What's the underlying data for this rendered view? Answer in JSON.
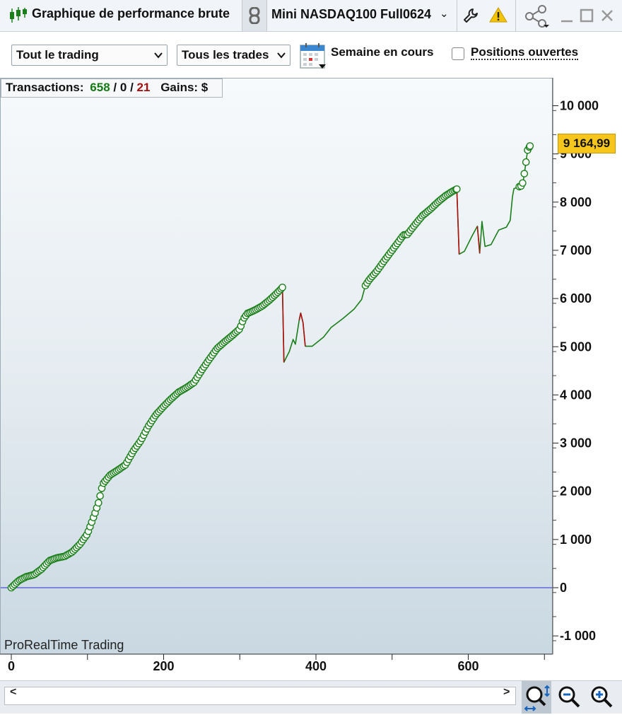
{
  "window": {
    "title": "Graphique de performance brute",
    "instrument": "Mini NASDAQ100 Full0624",
    "icons": [
      "candlestick-icon",
      "link-icon",
      "chevron-down-icon",
      "wrench-icon",
      "warning-icon",
      "share-icon",
      "minimize-icon",
      "maximize-icon",
      "close-icon"
    ]
  },
  "toolbar": {
    "trading_select": "Tout le trading",
    "trades_select": "Tous les trades",
    "period_label": "Semaine en cours",
    "open_positions_label": "Positions ouvertes",
    "open_positions_checked": false
  },
  "stats": {
    "transactions_label": "Transactions:",
    "wins": "658",
    "sep1": "/",
    "neutral": "0",
    "sep2": "/",
    "losses": "21",
    "gains_label": "Gains: $"
  },
  "watermark": "ProRealTime Trading",
  "last_value_badge": "9 164,99",
  "scroll": {
    "left": "<",
    "right": ">"
  },
  "colors": {
    "gain_line": "#1a7f1a",
    "loss_line": "#b01010",
    "zero_line": "#2b2bd1",
    "badge": "#f6c61c"
  },
  "chart_data": {
    "type": "line",
    "xlim": [
      0,
      710
    ],
    "ylim": [
      -1100,
      10100
    ],
    "x_ticks": [
      0,
      200,
      400,
      600
    ],
    "x_tick_labels": [
      "0",
      "200",
      "400",
      "600"
    ],
    "y_ticks": [
      10000,
      9000,
      8000,
      7000,
      6000,
      5000,
      4000,
      3000,
      2000,
      1000,
      0,
      -1000
    ],
    "y_tick_labels": [
      "10 000",
      "9 000",
      "8 000",
      "7 000",
      "6 000",
      "5 000",
      "4 000",
      "3 000",
      "2 000",
      "1 000",
      "0",
      "-1 000"
    ],
    "reference_line": 0,
    "last_value": 9164.99,
    "series": [
      {
        "points": [
          [
            0,
            0
          ],
          [
            10,
            150
          ],
          [
            20,
            230
          ],
          [
            30,
            270
          ],
          [
            40,
            390
          ],
          [
            50,
            560
          ],
          [
            60,
            620
          ],
          [
            70,
            650
          ],
          [
            80,
            740
          ],
          [
            90,
            900
          ],
          [
            100,
            1120
          ],
          [
            110,
            1550
          ],
          [
            115,
            1790
          ],
          [
            120,
            2150
          ],
          [
            130,
            2340
          ],
          [
            140,
            2440
          ],
          [
            150,
            2550
          ],
          [
            160,
            2830
          ],
          [
            170,
            3050
          ],
          [
            180,
            3350
          ],
          [
            190,
            3590
          ],
          [
            200,
            3760
          ],
          [
            210,
            3920
          ],
          [
            220,
            4060
          ],
          [
            230,
            4150
          ],
          [
            240,
            4260
          ],
          [
            250,
            4510
          ],
          [
            260,
            4740
          ],
          [
            270,
            4960
          ],
          [
            280,
            5100
          ],
          [
            290,
            5230
          ],
          [
            300,
            5370
          ],
          [
            305,
            5580
          ],
          [
            310,
            5690
          ],
          [
            320,
            5760
          ],
          [
            330,
            5850
          ],
          [
            340,
            5980
          ],
          [
            350,
            6130
          ],
          [
            356,
            6230
          ],
          [
            358,
            4680
          ],
          [
            365,
            4900
          ],
          [
            370,
            5150
          ],
          [
            373,
            5050
          ],
          [
            378,
            5550
          ],
          [
            380,
            5700
          ],
          [
            383,
            5500
          ],
          [
            386,
            5010
          ],
          [
            395,
            5010
          ],
          [
            410,
            5200
          ],
          [
            420,
            5400
          ],
          [
            435,
            5580
          ],
          [
            450,
            5780
          ],
          [
            460,
            5980
          ],
          [
            465,
            6270
          ],
          [
            470,
            6390
          ],
          [
            480,
            6570
          ],
          [
            490,
            6790
          ],
          [
            500,
            7000
          ],
          [
            510,
            7210
          ],
          [
            515,
            7320
          ],
          [
            520,
            7330
          ],
          [
            530,
            7530
          ],
          [
            540,
            7720
          ],
          [
            550,
            7850
          ],
          [
            560,
            8000
          ],
          [
            570,
            8130
          ],
          [
            580,
            8230
          ],
          [
            585,
            8270
          ],
          [
            588,
            6920
          ],
          [
            595,
            6980
          ],
          [
            605,
            7300
          ],
          [
            612,
            7500
          ],
          [
            615,
            6940
          ],
          [
            618,
            7600
          ],
          [
            622,
            7080
          ],
          [
            630,
            7120
          ],
          [
            640,
            7420
          ],
          [
            650,
            7480
          ],
          [
            655,
            7620
          ],
          [
            658,
            8110
          ],
          [
            660,
            8280
          ],
          [
            670,
            8340
          ],
          [
            672,
            8420
          ],
          [
            675,
            8740
          ],
          [
            678,
            9080
          ],
          [
            681,
            9164.99
          ]
        ]
      }
    ],
    "loss_segments": [
      [
        [
          356,
          6230
        ],
        [
          358,
          4680
        ]
      ],
      [
        [
          378,
          5550
        ],
        [
          380,
          5700
        ],
        [
          383,
          5500
        ],
        [
          386,
          5010
        ]
      ],
      [
        [
          585,
          8270
        ],
        [
          588,
          6920
        ]
      ],
      [
        [
          612,
          7500
        ],
        [
          615,
          6940
        ]
      ]
    ],
    "markers": {
      "x_to": 356,
      "x_from": 465,
      "x_to2": 585,
      "x_from2": 658
    }
  }
}
